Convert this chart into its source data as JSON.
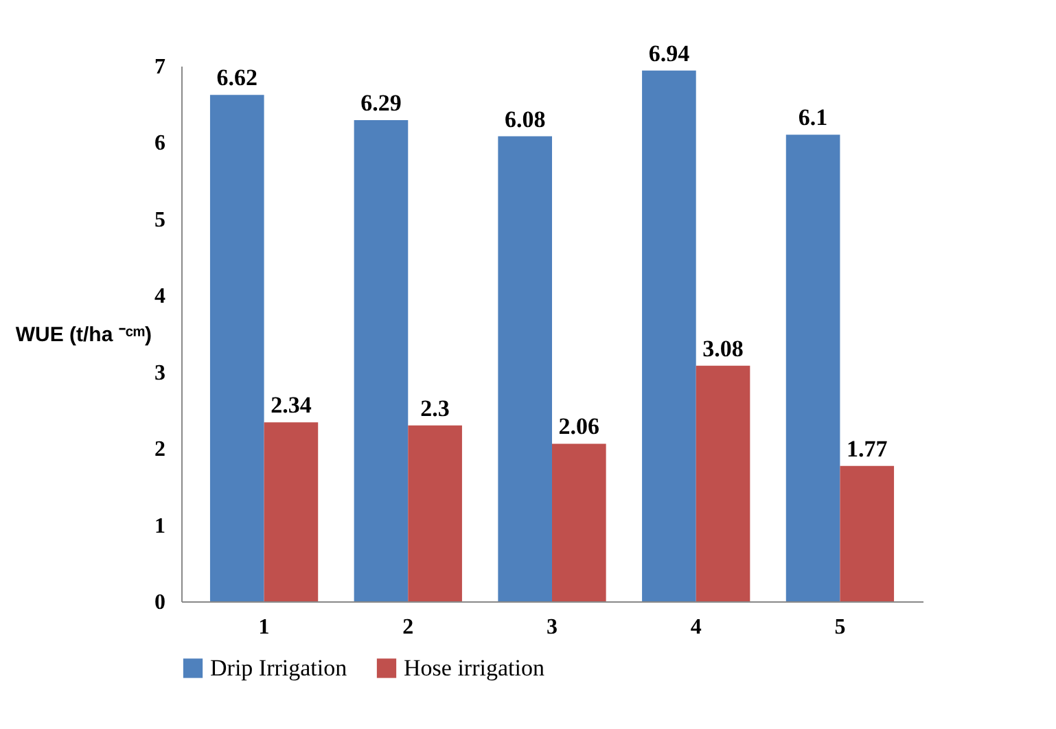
{
  "chart_data": {
    "type": "bar",
    "ylabel": "WUE (t/ha ⁻ᶜᵐ)",
    "categories": [
      "1",
      "2",
      "3",
      "4",
      "5"
    ],
    "series": [
      {
        "name": "Drip Irrigation",
        "color": "#4f81bd",
        "values": [
          6.62,
          6.29,
          6.08,
          6.94,
          6.1
        ]
      },
      {
        "name": "Hose irrigation",
        "color": "#c0504d",
        "values": [
          2.34,
          2.3,
          2.06,
          3.08,
          1.77
        ]
      }
    ],
    "ylim": [
      0,
      7
    ],
    "yticks": [
      0,
      1,
      2,
      3,
      4,
      5,
      6,
      7
    ],
    "data_labels": true,
    "legend": "bottom"
  }
}
